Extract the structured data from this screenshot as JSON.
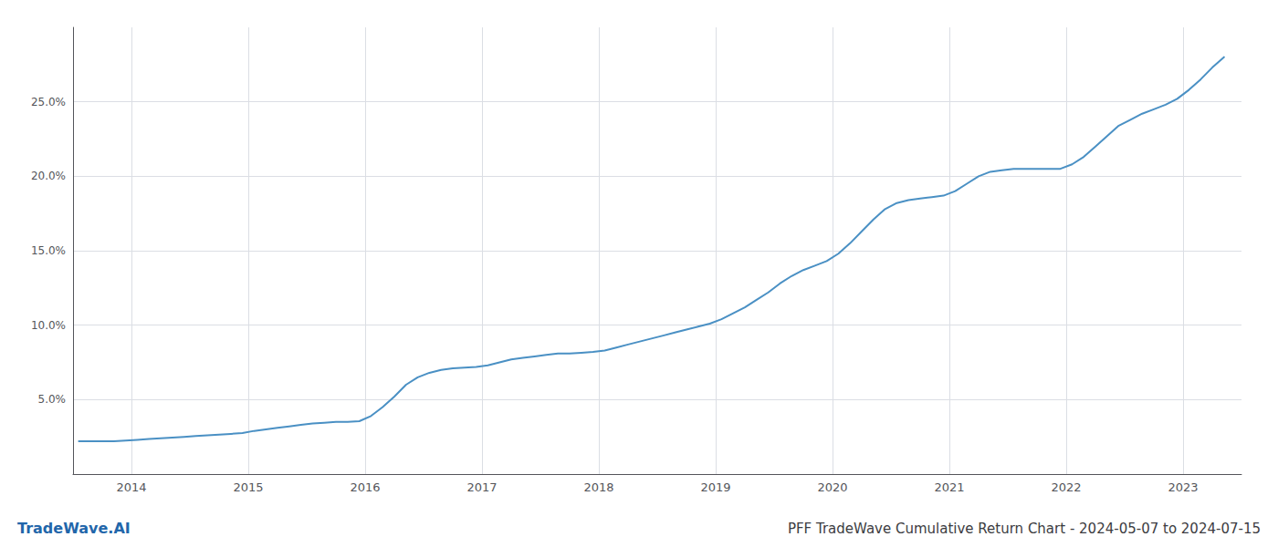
{
  "chart_data": {
    "type": "line",
    "title": "PFF TradeWave Cumulative Return Chart - 2024-05-07 to 2024-07-15",
    "annotations": [
      {
        "text": "TradeWave.AI",
        "color": "#2266aa"
      }
    ],
    "color": "#4a90c4",
    "x": [
      2013.55,
      2013.65,
      2013.75,
      2013.85,
      2013.95,
      2014.05,
      2014.15,
      2014.25,
      2014.35,
      2014.45,
      2014.55,
      2014.65,
      2014.75,
      2014.85,
      2014.95,
      2015.05,
      2015.15,
      2015.25,
      2015.35,
      2015.45,
      2015.55,
      2015.65,
      2015.75,
      2015.85,
      2015.95,
      2016.05,
      2016.15,
      2016.25,
      2016.35,
      2016.45,
      2016.55,
      2016.65,
      2016.75,
      2016.85,
      2016.95,
      2017.05,
      2017.15,
      2017.25,
      2017.35,
      2017.45,
      2017.55,
      2017.65,
      2017.75,
      2017.85,
      2017.95,
      2018.05,
      2018.15,
      2018.25,
      2018.35,
      2018.45,
      2018.55,
      2018.65,
      2018.75,
      2018.85,
      2018.95,
      2019.05,
      2019.15,
      2019.25,
      2019.35,
      2019.45,
      2019.55,
      2019.65,
      2019.75,
      2019.85,
      2019.95,
      2020.05,
      2020.15,
      2020.25,
      2020.35,
      2020.45,
      2020.55,
      2020.65,
      2020.75,
      2020.85,
      2020.95,
      2021.05,
      2021.15,
      2021.25,
      2021.35,
      2021.45,
      2021.55,
      2021.65,
      2021.75,
      2021.85,
      2021.95,
      2022.05,
      2022.15,
      2022.25,
      2022.35,
      2022.45,
      2022.55,
      2022.65,
      2022.75,
      2022.85,
      2022.95,
      2023.05,
      2023.15,
      2023.25,
      2023.35
    ],
    "values": [
      2.2,
      2.2,
      2.2,
      2.2,
      2.25,
      2.3,
      2.35,
      2.4,
      2.45,
      2.5,
      2.55,
      2.6,
      2.65,
      2.7,
      2.75,
      2.9,
      3.0,
      3.1,
      3.2,
      3.3,
      3.4,
      3.45,
      3.5,
      3.5,
      3.55,
      3.9,
      4.5,
      5.2,
      6.0,
      6.5,
      6.8,
      7.0,
      7.1,
      7.15,
      7.2,
      7.3,
      7.5,
      7.7,
      7.8,
      7.9,
      8.0,
      8.1,
      8.1,
      8.15,
      8.2,
      8.3,
      8.5,
      8.7,
      8.9,
      9.1,
      9.3,
      9.5,
      9.7,
      9.9,
      10.1,
      10.4,
      10.8,
      11.2,
      11.7,
      12.2,
      12.8,
      13.3,
      13.7,
      14.0,
      14.3,
      14.8,
      15.5,
      16.3,
      17.1,
      17.8,
      18.2,
      18.4,
      18.5,
      18.6,
      18.7,
      19.0,
      19.5,
      20.0,
      20.3,
      20.4,
      20.5,
      20.5,
      20.5,
      20.5,
      20.5,
      20.8,
      21.3,
      22.0,
      22.7,
      23.4,
      23.8,
      24.2,
      24.5,
      24.8,
      25.2,
      25.8,
      26.5,
      27.3,
      28.0
    ],
    "xlim": [
      2013.5,
      2023.5
    ],
    "xticks": [
      2014,
      2015,
      2016,
      2017,
      2018,
      2019,
      2020,
      2021,
      2022,
      2023
    ],
    "ylim": [
      0,
      30
    ],
    "yticks": [
      {
        "value": 5.0,
        "label": "5.0%"
      },
      {
        "value": 10.0,
        "label": "10.0%"
      },
      {
        "value": 15.0,
        "label": "15.0%"
      },
      {
        "value": 20.0,
        "label": "20.0%"
      },
      {
        "value": 25.0,
        "label": "25.0%"
      }
    ],
    "grid": true
  }
}
